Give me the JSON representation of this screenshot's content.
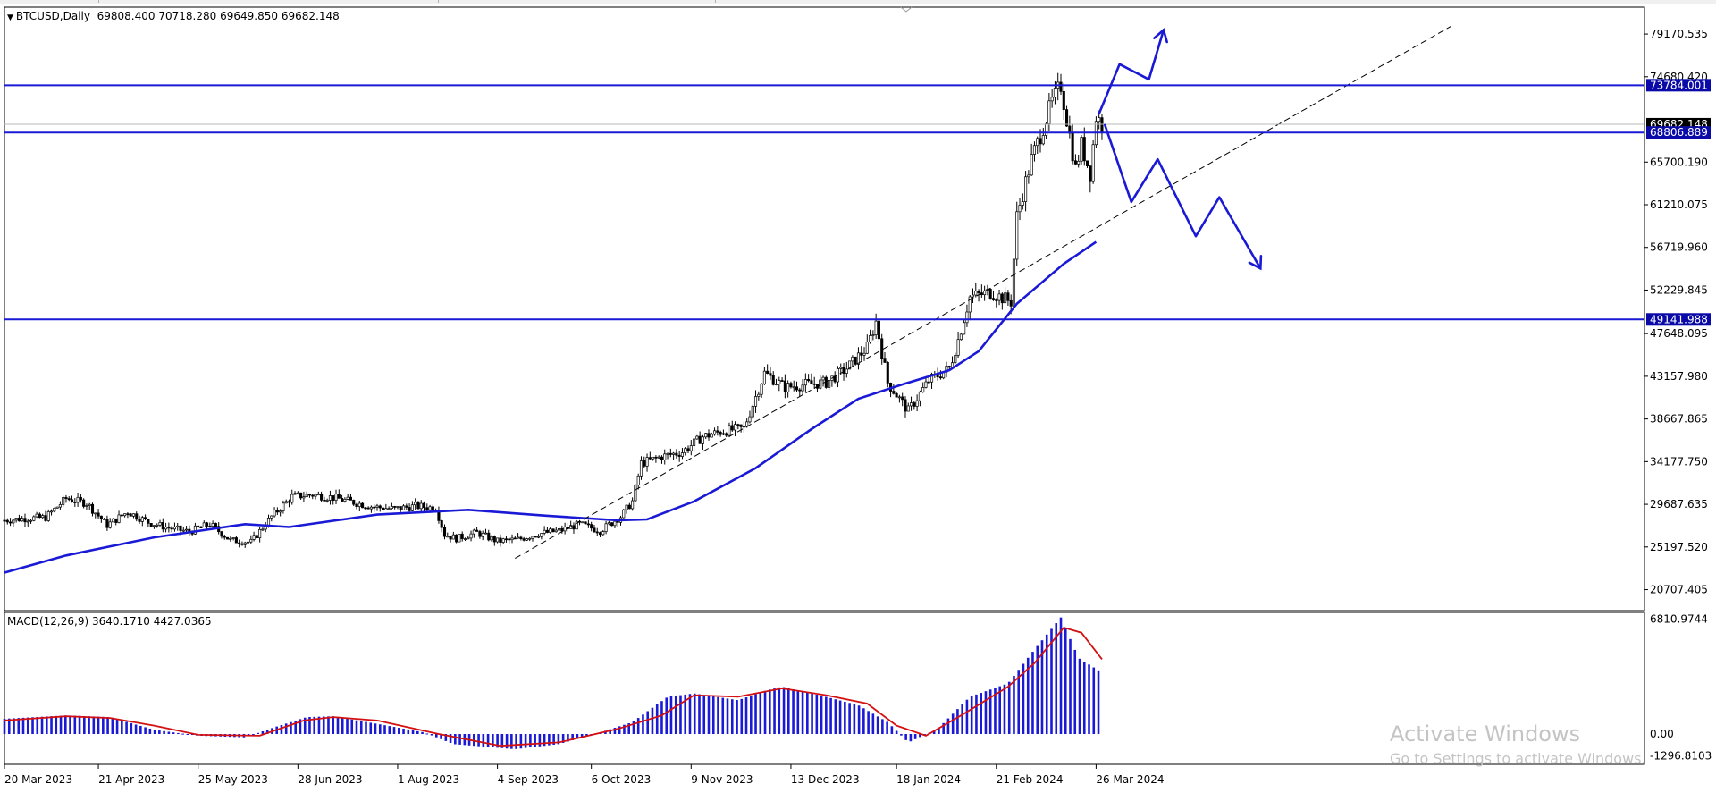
{
  "header": {
    "symbol": "BTCUSD,Daily",
    "open": "69808.400",
    "high": "70718.280",
    "low": "69649.850",
    "close": "69682.148"
  },
  "macd_header": {
    "label": "MACD(12,26,9)",
    "main": "3640.1710",
    "signal": "4427.0365"
  },
  "watermark": {
    "line1": "Activate Windows",
    "line2": "Go to Settings to activate Windows."
  },
  "colors": {
    "price_bars": "#000000",
    "moving_average": "#1a1ad6",
    "level_lines": "#1a1ad6",
    "macd_histogram": "#1a1ad6",
    "macd_signal": "#d41010",
    "price_badge": "#0a0aa8"
  },
  "chart_data": [
    {
      "type": "candlestick",
      "symbol": "BTCUSD",
      "timeframe": "Daily",
      "ylim": [
        18500,
        82000
      ],
      "y_ticks": [
        "79170.535",
        "74680.420",
        "65700.190",
        "61210.075",
        "56719.960",
        "52229.845",
        "47648.095",
        "43157.980",
        "38667.865",
        "34177.750",
        "29687.635",
        "25197.520",
        "20707.405"
      ],
      "x_ticks": [
        "20 Mar 2023",
        "21 Apr 2023",
        "25 May 2023",
        "28 Jun 2023",
        "1 Aug 2023",
        "4 Sep 2023",
        "6 Oct 2023",
        "9 Nov 2023",
        "13 Dec 2023",
        "18 Jan 2024",
        "21 Feb 2024",
        "26 Mar 2024"
      ],
      "close_path": [
        [
          "2023-03-20",
          28000
        ],
        [
          "2023-03-27",
          28200
        ],
        [
          "2023-04-03",
          28300
        ],
        [
          "2023-04-10",
          30300
        ],
        [
          "2023-04-17",
          29800
        ],
        [
          "2023-04-24",
          27500
        ],
        [
          "2023-05-01",
          28900
        ],
        [
          "2023-05-08",
          27800
        ],
        [
          "2023-05-15",
          27200
        ],
        [
          "2023-05-22",
          26800
        ],
        [
          "2023-05-29",
          27600
        ],
        [
          "2023-06-05",
          25900
        ],
        [
          "2023-06-12",
          25700
        ],
        [
          "2023-06-19",
          28400
        ],
        [
          "2023-06-26",
          30500
        ],
        [
          "2023-07-03",
          30700
        ],
        [
          "2023-07-10",
          30400
        ],
        [
          "2023-07-17",
          29900
        ],
        [
          "2023-07-24",
          29400
        ],
        [
          "2023-07-31",
          29200
        ],
        [
          "2023-08-07",
          29500
        ],
        [
          "2023-08-14",
          29300
        ],
        [
          "2023-08-17",
          26500
        ],
        [
          "2023-08-21",
          26100
        ],
        [
          "2023-08-28",
          26700
        ],
        [
          "2023-09-04",
          25800
        ],
        [
          "2023-09-11",
          26000
        ],
        [
          "2023-09-18",
          26600
        ],
        [
          "2023-09-25",
          26900
        ],
        [
          "2023-10-02",
          27600
        ],
        [
          "2023-10-09",
          26900
        ],
        [
          "2023-10-16",
          28400
        ],
        [
          "2023-10-20",
          30000
        ],
        [
          "2023-10-23",
          34000
        ],
        [
          "2023-10-30",
          34700
        ],
        [
          "2023-11-06",
          35200
        ],
        [
          "2023-11-13",
          36800
        ],
        [
          "2023-11-20",
          37400
        ],
        [
          "2023-11-27",
          37700
        ],
        [
          "2023-12-04",
          43500
        ],
        [
          "2023-12-11",
          42000
        ],
        [
          "2023-12-18",
          42300
        ],
        [
          "2023-12-25",
          42500
        ],
        [
          "2024-01-01",
          44000
        ],
        [
          "2024-01-08",
          46200
        ],
        [
          "2024-01-11",
          48900
        ],
        [
          "2024-01-15",
          42500
        ],
        [
          "2024-01-22",
          39500
        ],
        [
          "2024-01-29",
          42700
        ],
        [
          "2024-02-05",
          44000
        ],
        [
          "2024-02-08",
          47000
        ],
        [
          "2024-02-12",
          51500
        ],
        [
          "2024-02-19",
          52000
        ],
        [
          "2024-02-26",
          51000
        ],
        [
          "2024-02-28",
          60000
        ],
        [
          "2024-03-04",
          66000
        ],
        [
          "2024-03-11",
          72000
        ],
        [
          "2024-03-14",
          73784
        ],
        [
          "2024-03-19",
          65000
        ],
        [
          "2024-03-21",
          67500
        ],
        [
          "2024-03-24",
          64500
        ],
        [
          "2024-03-26",
          70500
        ],
        [
          "2024-03-28",
          69682
        ]
      ],
      "moving_average": [
        [
          "2023-03-20",
          22500
        ],
        [
          "2023-04-10",
          24300
        ],
        [
          "2023-05-10",
          26200
        ],
        [
          "2023-06-10",
          27600
        ],
        [
          "2023-06-25",
          27300
        ],
        [
          "2023-07-25",
          28600
        ],
        [
          "2023-08-25",
          29100
        ],
        [
          "2023-09-20",
          28500
        ],
        [
          "2023-10-15",
          28000
        ],
        [
          "2023-10-25",
          28100
        ],
        [
          "2023-11-10",
          30000
        ],
        [
          "2023-12-01",
          33500
        ],
        [
          "2023-12-20",
          37600
        ],
        [
          "2024-01-05",
          40800
        ],
        [
          "2024-01-20",
          42300
        ],
        [
          "2024-02-05",
          43800
        ],
        [
          "2024-02-15",
          45800
        ],
        [
          "2024-02-28",
          50800
        ],
        [
          "2024-03-15",
          55000
        ],
        [
          "2024-03-26",
          57300
        ]
      ],
      "horizontal_levels": [
        {
          "price": 73784.001,
          "label": "73784.001"
        },
        {
          "price": 68806.889,
          "label": "68806.889"
        },
        {
          "price": 49141.988,
          "label": "49141.988"
        }
      ],
      "current_price": {
        "price": 69682.148,
        "label": "69682.148"
      },
      "trendline": {
        "style": "dashed",
        "from": [
          "2023-09-10",
          24000
        ],
        "to": [
          "2024-07-25",
          80000
        ]
      },
      "drawings": [
        {
          "kind": "arrow-up",
          "points": [
            [
              "2024-03-27",
              70800
            ],
            [
              "2024-04-03",
              76000
            ],
            [
              "2024-04-13",
              74400
            ],
            [
              "2024-04-18",
              79600
            ]
          ]
        },
        {
          "kind": "arrow-down",
          "points": [
            [
              "2024-03-29",
              69600
            ],
            [
              "2024-04-07",
              61500
            ],
            [
              "2024-04-16",
              66000
            ],
            [
              "2024-04-29",
              57900
            ],
            [
              "2024-05-07",
              62000
            ],
            [
              "2024-05-21",
              54500
            ]
          ]
        }
      ]
    },
    {
      "type": "histogram",
      "indicator": "MACD(12,26,9)",
      "ylim": [
        -1800,
        7200
      ],
      "y_ticks": [
        "6810.9744",
        "0.00",
        "-1296.8103"
      ],
      "histogram_path": [
        [
          "2023-03-20",
          900
        ],
        [
          "2023-04-10",
          1100
        ],
        [
          "2023-04-25",
          1000
        ],
        [
          "2023-05-10",
          250
        ],
        [
          "2023-05-25",
          -100
        ],
        [
          "2023-06-10",
          -200
        ],
        [
          "2023-06-20",
          400
        ],
        [
          "2023-07-01",
          1000
        ],
        [
          "2023-07-10",
          1050
        ],
        [
          "2023-07-25",
          600
        ],
        [
          "2023-08-10",
          100
        ],
        [
          "2023-08-20",
          -600
        ],
        [
          "2023-09-10",
          -900
        ],
        [
          "2023-09-25",
          -600
        ],
        [
          "2023-10-10",
          150
        ],
        [
          "2023-10-20",
          700
        ],
        [
          "2023-11-01",
          2200
        ],
        [
          "2023-11-10",
          2400
        ],
        [
          "2023-11-25",
          2000
        ],
        [
          "2023-12-05",
          2600
        ],
        [
          "2023-12-10",
          2800
        ],
        [
          "2023-12-25",
          2200
        ],
        [
          "2024-01-05",
          1700
        ],
        [
          "2024-01-15",
          700
        ],
        [
          "2024-01-22",
          -500
        ],
        [
          "2024-02-01",
          300
        ],
        [
          "2024-02-12",
          2200
        ],
        [
          "2024-02-25",
          3000
        ],
        [
          "2024-03-05",
          5000
        ],
        [
          "2024-03-14",
          6900
        ],
        [
          "2024-03-20",
          4500
        ],
        [
          "2024-03-28",
          3640
        ]
      ],
      "signal_path": [
        [
          "2023-03-20",
          800
        ],
        [
          "2023-04-10",
          1050
        ],
        [
          "2023-04-25",
          950
        ],
        [
          "2023-05-10",
          500
        ],
        [
          "2023-05-25",
          -50
        ],
        [
          "2023-06-15",
          -100
        ],
        [
          "2023-06-30",
          800
        ],
        [
          "2023-07-10",
          1000
        ],
        [
          "2023-07-25",
          800
        ],
        [
          "2023-08-15",
          0
        ],
        [
          "2023-09-05",
          -700
        ],
        [
          "2023-09-25",
          -500
        ],
        [
          "2023-10-15",
          300
        ],
        [
          "2023-10-30",
          1100
        ],
        [
          "2023-11-10",
          2300
        ],
        [
          "2023-11-25",
          2200
        ],
        [
          "2023-12-10",
          2700
        ],
        [
          "2023-12-25",
          2300
        ],
        [
          "2024-01-08",
          1800
        ],
        [
          "2024-01-18",
          500
        ],
        [
          "2024-01-28",
          -100
        ],
        [
          "2024-02-10",
          1200
        ],
        [
          "2024-02-25",
          2800
        ],
        [
          "2024-03-05",
          4200
        ],
        [
          "2024-03-15",
          6300
        ],
        [
          "2024-03-21",
          6000
        ],
        [
          "2024-03-28",
          4427
        ]
      ]
    }
  ]
}
